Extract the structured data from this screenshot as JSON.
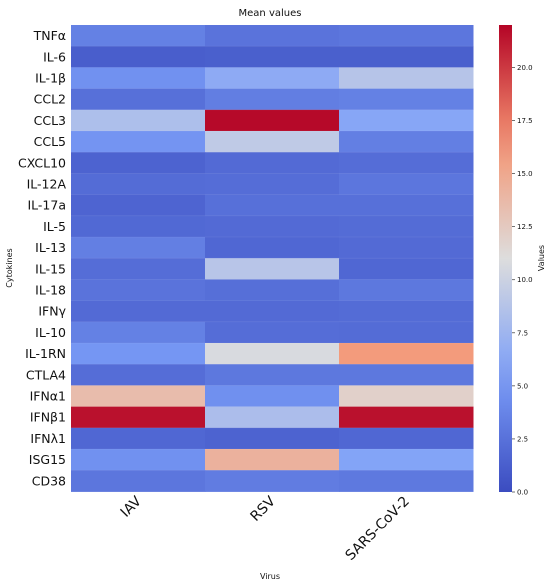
{
  "chart_data": {
    "type": "heatmap",
    "title": "Mean values",
    "xlabel": "Virus",
    "ylabel": "Cytokines",
    "x_categories": [
      "IAV",
      "RSV",
      "SARS-CoV-2"
    ],
    "y_categories": [
      "TNFα",
      "IL-6",
      "IL-1β",
      "CCL2",
      "CCL3",
      "CCL5",
      "CXCL10",
      "IL-12A",
      "IL-17a",
      "IL-5",
      "IL-13",
      "IL-15",
      "IL-18",
      "IFNγ",
      "IL-10",
      "IL-1RN",
      "CTLA4",
      "IFNα1",
      "IFNβ1",
      "IFNλ1",
      "ISG15",
      "CD38"
    ],
    "values": [
      [
        3.5,
        2.6,
        2.8
      ],
      [
        1.2,
        1.3,
        1.3
      ],
      [
        4.6,
        6.5,
        8.8
      ],
      [
        2.4,
        3.3,
        3.5
      ],
      [
        8.3,
        21.8,
        6.1
      ],
      [
        4.8,
        9.3,
        3.4
      ],
      [
        1.5,
        2.0,
        2.2
      ],
      [
        2.1,
        2.2,
        2.8
      ],
      [
        1.6,
        2.4,
        2.4
      ],
      [
        1.9,
        2.0,
        2.1
      ],
      [
        3.4,
        1.8,
        2.0
      ],
      [
        2.2,
        8.9,
        1.8
      ],
      [
        2.6,
        2.3,
        2.9
      ],
      [
        2.0,
        2.0,
        2.1
      ],
      [
        3.5,
        2.2,
        2.1
      ],
      [
        4.9,
        10.7,
        16.0
      ],
      [
        2.2,
        2.9,
        2.9
      ],
      [
        13.5,
        4.5,
        12.0
      ],
      [
        21.5,
        8.2,
        21.5
      ],
      [
        1.8,
        1.5,
        1.8
      ],
      [
        4.6,
        14.3,
        5.9
      ],
      [
        2.8,
        3.2,
        3.0
      ]
    ],
    "colorbar": {
      "label": "Values",
      "min": 0,
      "max": 22,
      "ticks": [
        "0.0",
        "2.5",
        "5.0",
        "7.5",
        "10.0",
        "12.5",
        "15.0",
        "17.5",
        "20.0"
      ],
      "colormap": "coolwarm"
    },
    "colors": {
      "low": "#3b4cc0",
      "mid": "#dddddd",
      "high": "#b40426"
    }
  }
}
